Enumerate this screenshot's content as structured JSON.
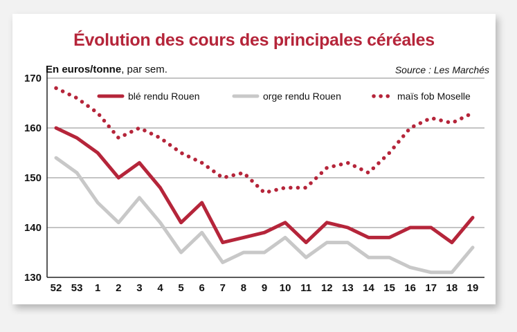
{
  "header": {
    "title": "Évolution des cours des principales céréales",
    "unit_bold": "En euros/tonne",
    "unit_rest": ", par sem.",
    "source": "Source : Les Marchés"
  },
  "chart_data": {
    "type": "line",
    "title": "Évolution des cours des principales céréales",
    "ylabel": "En euros/tonne, par sem.",
    "xlabel": "",
    "ylim": [
      130,
      170
    ],
    "yticks": [
      130,
      140,
      150,
      160,
      170
    ],
    "grid": true,
    "legend_position": "top",
    "categories": [
      "52",
      "53",
      "1",
      "2",
      "3",
      "4",
      "5",
      "6",
      "7",
      "8",
      "9",
      "10",
      "11",
      "12",
      "13",
      "14",
      "15",
      "16",
      "17",
      "18",
      "19"
    ],
    "series": [
      {
        "name": "blé rendu Rouen",
        "color": "#b5253a",
        "style": "solid",
        "values": [
          160,
          158,
          155,
          150,
          153,
          148,
          141,
          145,
          137,
          138,
          139,
          141,
          137,
          141,
          140,
          138,
          138,
          140,
          140,
          137,
          142
        ]
      },
      {
        "name": "orge rendu Rouen",
        "color": "#c8c8c8",
        "style": "solid",
        "values": [
          154,
          151,
          145,
          141,
          146,
          141,
          135,
          139,
          133,
          135,
          135,
          138,
          134,
          137,
          137,
          134,
          134,
          132,
          131,
          131,
          136
        ]
      },
      {
        "name": "maïs fob Moselle",
        "color": "#b5253a",
        "style": "dotted",
        "values": [
          168,
          166,
          163,
          158,
          160,
          158,
          155,
          153,
          150,
          151,
          147,
          148,
          148,
          152,
          153,
          151,
          155,
          160,
          162,
          161,
          163
        ]
      }
    ]
  }
}
